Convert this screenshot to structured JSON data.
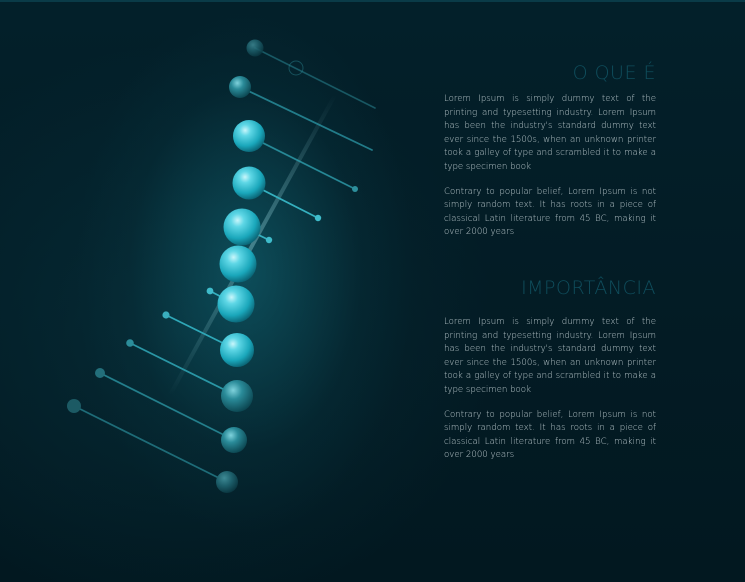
{
  "sections": [
    {
      "heading": "O QUE É",
      "paragraphs": [
        "Lorem Ipsum is simply dummy text of the printing and typesetting industry. Lorem Ipsum has been the industry's standard dummy text ever since the 1500s, when an unknown printer took a galley of type and scrambled it to make a type specimen book",
        "Contrary to popular belief, Lorem Ipsum is not simply random text. It has roots in a piece of classical Latin literature from 45 BC, making it over 2000 years"
      ]
    },
    {
      "heading": "IMPORTÂNCIA",
      "paragraphs": [
        "Lorem Ipsum is simply dummy text of the printing and typesetting industry. Lorem Ipsum has been the industry's standard dummy text ever since the 1500s, when an unknown printer took a galley of type and scrambled it to make a type specimen book",
        "Contrary to popular belief, Lorem Ipsum is not simply random text. It has roots in a piece of classical Latin literature from 45 BC, making it over 2000 years"
      ]
    }
  ],
  "colors": {
    "background": "#031a22",
    "heading": "#0f4d5c",
    "body_text": "#b9c7cb",
    "sphere": "#2fc3d6"
  }
}
